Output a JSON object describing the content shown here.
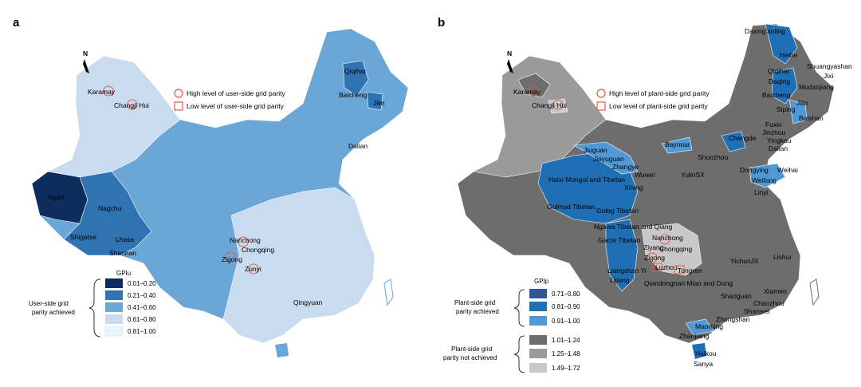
{
  "panels": [
    {
      "letter": "a",
      "north": "N",
      "marker_legend": {
        "circle": "High level of user-side grid parity",
        "square": "Low level of user-side grid parity"
      },
      "legend_title": "GPIu",
      "legend": [
        {
          "range": "0.01–0.20",
          "color": "#0d2d5e"
        },
        {
          "range": "0.21–0.40",
          "color": "#2f73b3"
        },
        {
          "range": "0.41–0.60",
          "color": "#6aa6d6"
        },
        {
          "range": "0.61–0.80",
          "color": "#c9dcef"
        },
        {
          "range": "0.81–1.00",
          "color": "#eef4fb"
        }
      ],
      "group_label_1": "User-side grid",
      "group_label_2": "parity achieved",
      "cities": [
        "Karamay",
        "Changji Hui",
        "Qiqihar",
        "Baicheng",
        "Jilin",
        "Dalian",
        "Ngari",
        "Nagchu",
        "Shigatse",
        "Lhasa",
        "Shannan",
        "Nanchong",
        "Chongqing",
        "Zigong",
        "Zunyi",
        "Qingyuan"
      ]
    },
    {
      "letter": "b",
      "north": "N",
      "marker_legend": {
        "circle": "High level of plant-side grid parity",
        "square": "Low level of plant-side grid parity"
      },
      "legend_title": "GPIp",
      "legend": [
        {
          "range": "0.71–0.80",
          "color": "#2f5596"
        },
        {
          "range": "0.81–0.90",
          "color": "#1f6fb5"
        },
        {
          "range": "0.91–1.00",
          "color": "#4f9ad6"
        },
        {
          "range": "1.01–1.24",
          "color": "#6d6d6d"
        },
        {
          "range": "1.25–1.48",
          "color": "#9a9a9a"
        },
        {
          "range": "1.49–1.72",
          "color": "#c8c8c8"
        }
      ],
      "group1_label_1": "Plant-side grid",
      "group1_label_2": "parity achieved",
      "group2_label_1": "Plant-side grid",
      "group2_label_2": "parity not achieved",
      "cities": [
        "Daxing'anling",
        "Heihe",
        "Shuangyashan",
        "Jixi",
        "Qiqihar",
        "Daqing",
        "Mudanjiang",
        "Baicheng",
        "Siping",
        "Jilin",
        "Baishan",
        "Karamay",
        "Changji Hui",
        "Fuxin",
        "Jinzhou",
        "Chengde",
        "Yingkou",
        "Dalian",
        "Baynnur",
        "Shuozhou",
        "Jiuguan",
        "Jiayuguan",
        "Zhangye",
        "Wuwei",
        "YulinSX",
        "Dongying",
        "Weihai",
        "Weifang",
        "Linyi",
        "Haixi Mongol and Tibetan",
        "Xining",
        "Golmud Tibetan",
        "Golog Tibetan",
        "Ngawa Tibetan and Qiang",
        "Garze Tibetan",
        "Nanchong",
        "Ziyang",
        "Chongqing",
        "Zigong",
        "Luzhou",
        "Tongren",
        "Liangshan Yi",
        "Lijiang",
        "Qiandongnan Miao and Dong",
        "YichunJX",
        "Lishui",
        "Xiamen",
        "Shaoguan",
        "Chaozhou",
        "Shanwei",
        "Zhongshan",
        "Maoming",
        "Zhanjiang",
        "Haikou",
        "Sanya"
      ]
    }
  ]
}
